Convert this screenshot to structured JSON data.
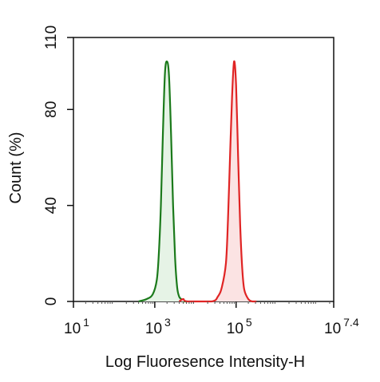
{
  "chart_data": {
    "type": "area",
    "xlabel": "Log Fluoresence Intensity-H",
    "ylabel": "Count  (%)",
    "x_scale": "log",
    "xlim": [
      10,
      25118864
    ],
    "ylim": [
      0,
      110
    ],
    "grid": false,
    "legend": "none",
    "x_ticks": [
      {
        "base": "10",
        "exp": "1",
        "value": 10
      },
      {
        "base": "10",
        "exp": "3",
        "value": 1000
      },
      {
        "base": "10",
        "exp": "5",
        "value": 100000
      },
      {
        "base": "10",
        "exp": "7.4",
        "value": 25118864
      }
    ],
    "y_ticks": [
      {
        "label": "0",
        "value": 0
      },
      {
        "label": "40",
        "value": 40
      },
      {
        "label": "80",
        "value": 80
      },
      {
        "label": "110",
        "value": 110
      }
    ],
    "series": [
      {
        "color": "#1b7a1b",
        "fill": "#e6f3e6",
        "x": [
          2.6,
          2.8,
          2.95,
          3.05,
          3.1,
          3.15,
          3.2,
          3.25,
          3.3,
          3.35,
          3.4,
          3.45,
          3.5,
          3.55,
          3.6,
          3.65,
          3.7,
          3.8
        ],
        "y": [
          0,
          1,
          3,
          9,
          20,
          40,
          70,
          95,
          100,
          94,
          70,
          40,
          18,
          6,
          2,
          1,
          0,
          0
        ]
      },
      {
        "color": "#e02424",
        "fill": "#fbe3e3",
        "x": [
          3.6,
          3.7,
          3.8,
          4.4,
          4.55,
          4.65,
          4.75,
          4.8,
          4.85,
          4.9,
          4.95,
          5.0,
          5.05,
          5.1,
          5.15,
          5.2,
          5.3,
          5.4,
          5.5
        ],
        "y": [
          0,
          1,
          0,
          0,
          2,
          6,
          16,
          34,
          60,
          85,
          100,
          90,
          60,
          32,
          14,
          5,
          1,
          0,
          0
        ]
      }
    ]
  }
}
